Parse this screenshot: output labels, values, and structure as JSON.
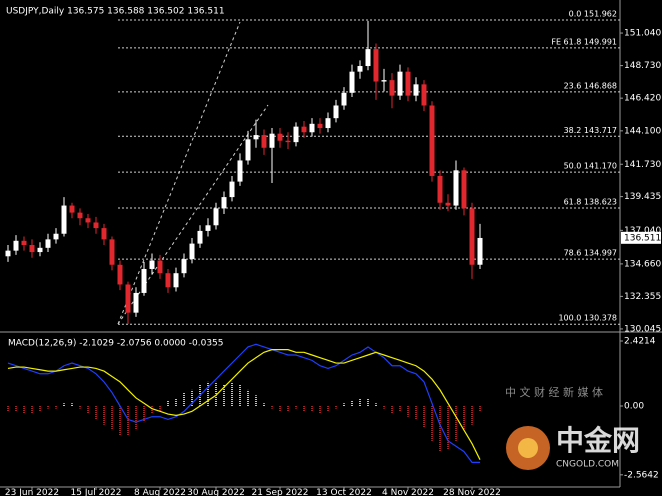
{
  "chart_data": [
    {
      "type": "candlestick",
      "title": "USDJPY,Daily  136.575 136.588 136.502 136.511",
      "categories": [
        null,
        null,
        null,
        "23 Jun 2022",
        null,
        null,
        null,
        null,
        null,
        null,
        null,
        "15 Jul 2022",
        null,
        null,
        null,
        null,
        null,
        null,
        null,
        "8 Aug 2022",
        null,
        null,
        null,
        null,
        null,
        null,
        "30 Aug 2022",
        null,
        null,
        null,
        null,
        null,
        null,
        null,
        "21 Sep 2022",
        null,
        null,
        null,
        null,
        null,
        null,
        null,
        "13 Oct 2022",
        null,
        null,
        null,
        null,
        null,
        null,
        null,
        "4 Nov 2022",
        null,
        null,
        null,
        null,
        null,
        null,
        null,
        "28 Nov 2022",
        null
      ],
      "open": [
        135.2,
        135.6,
        136.3,
        136.0,
        135.5,
        135.8,
        136.4,
        136.8,
        138.8,
        138.3,
        137.9,
        137.6,
        137.2,
        136.4,
        134.6,
        133.2,
        131.2,
        132.6,
        134.3,
        134.9,
        134.0,
        133.0,
        134.0,
        135.0,
        136.1,
        137.0,
        137.4,
        138.6,
        139.4,
        140.5,
        142.0,
        143.5,
        143.8,
        142.9,
        143.9,
        143.4,
        143.3,
        144.4,
        144.0,
        144.6,
        144.3,
        145.0,
        145.9,
        146.8,
        148.3,
        148.7,
        149.9,
        147.6,
        147.7,
        146.6,
        148.3,
        146.6,
        147.4,
        145.9,
        140.9,
        139.0,
        138.8,
        141.3,
        138.6,
        134.6
      ],
      "high": [
        136.0,
        136.7,
        136.6,
        136.4,
        136.2,
        136.8,
        137.2,
        139.4,
        139.0,
        138.6,
        138.2,
        138.0,
        137.5,
        136.6,
        134.9,
        133.4,
        133.0,
        134.8,
        135.4,
        135.3,
        134.3,
        134.4,
        135.4,
        136.5,
        137.4,
        137.9,
        139.0,
        139.8,
        140.9,
        142.5,
        144.1,
        144.9,
        144.2,
        144.3,
        144.3,
        144.0,
        144.7,
        144.8,
        145.0,
        145.0,
        145.4,
        146.3,
        147.2,
        148.8,
        149.1,
        151.9,
        150.3,
        148.5,
        148.2,
        148.8,
        148.6,
        147.9,
        147.7,
        146.2,
        141.3,
        139.6,
        142.0,
        141.5,
        139.0,
        137.5
      ],
      "low": [
        134.8,
        135.3,
        135.6,
        135.1,
        135.2,
        135.5,
        136.1,
        136.6,
        137.9,
        137.4,
        137.2,
        136.8,
        136.0,
        134.2,
        132.8,
        130.4,
        130.9,
        132.4,
        133.9,
        133.6,
        132.6,
        132.7,
        133.7,
        134.7,
        135.8,
        136.6,
        137.1,
        138.2,
        139.1,
        140.2,
        141.7,
        142.9,
        142.4,
        140.4,
        142.9,
        142.8,
        143.0,
        143.6,
        143.7,
        143.9,
        144.0,
        144.7,
        145.6,
        146.5,
        147.8,
        148.4,
        146.3,
        146.9,
        145.7,
        146.3,
        146.2,
        146.2,
        145.5,
        140.5,
        138.5,
        138.4,
        138.5,
        138.1,
        133.6,
        134.3
      ],
      "close": [
        135.6,
        136.3,
        136.0,
        135.5,
        135.8,
        136.4,
        136.8,
        138.8,
        138.3,
        137.9,
        137.6,
        137.2,
        136.4,
        134.6,
        133.2,
        131.2,
        132.6,
        134.3,
        134.9,
        134.0,
        133.0,
        134.0,
        135.0,
        136.1,
        137.0,
        137.4,
        138.6,
        139.4,
        140.5,
        142.0,
        143.5,
        143.8,
        142.9,
        143.9,
        143.4,
        143.3,
        144.4,
        144.0,
        144.6,
        144.3,
        145.0,
        145.9,
        146.8,
        148.3,
        148.7,
        149.9,
        147.6,
        147.7,
        146.6,
        148.3,
        146.6,
        147.4,
        145.9,
        140.9,
        139.0,
        138.8,
        141.3,
        138.6,
        134.6,
        136.5
      ],
      "up_color": "#ffffff",
      "down_color": "#e0282e",
      "ylim": [
        129.97,
        153.03
      ],
      "yticks": [
        {
          "value": 151.04,
          "label": "151.040"
        },
        {
          "value": 148.73,
          "label": "148.730"
        },
        {
          "value": 146.42,
          "label": "146.420"
        },
        {
          "value": 144.1,
          "label": "144.100"
        },
        {
          "value": 141.73,
          "label": "141.730"
        },
        139.435,
        {
          "value": 137.04,
          "label": "137.040"
        },
        {
          "value": 134.66,
          "label": "134.660"
        },
        132.355,
        130.045
      ],
      "last_price": 136.511,
      "fib_levels": [
        {
          "value": 151.962,
          "label": "0.0  151.962"
        },
        {
          "value": 149.991,
          "label": "FE 61.8  149.991"
        },
        {
          "value": 146.868,
          "label": "23.6  146.868"
        },
        {
          "value": 143.717,
          "label": "38.2  143.717"
        },
        {
          "value": 141.17,
          "label": "50.0  141.170"
        },
        {
          "value": 138.623,
          "label": "61.8  138.623"
        },
        {
          "value": 134.997,
          "label": "78.6  134.997"
        },
        {
          "value": 130.378,
          "label": "100.0  130.378"
        }
      ]
    },
    {
      "type": "macd",
      "title": "MACD(12,26,9) -2.1029 -2.0756 0.0000 -0.0355",
      "histogram": [
        -0.2,
        -0.2,
        -0.3,
        -0.3,
        -0.2,
        -0.1,
        -0.1,
        0.1,
        0.1,
        -0.1,
        -0.3,
        -0.5,
        -0.7,
        -0.9,
        -1.1,
        -1.1,
        -0.9,
        -0.6,
        -0.3,
        -0.2,
        0.2,
        0.3,
        0.5,
        0.6,
        0.8,
        0.9,
        0.9,
        0.8,
        0.9,
        0.8,
        0.6,
        0.4,
        0.1,
        -0.1,
        -0.2,
        -0.2,
        -0.1,
        -0.2,
        -0.2,
        -0.3,
        -0.2,
        -0.1,
        0.1,
        0.2,
        0.3,
        0.3,
        0.1,
        -0.1,
        -0.3,
        -0.2,
        -0.4,
        -0.5,
        -0.8,
        -1.3,
        -1.7,
        -1.6,
        -1.3,
        -0.9,
        -0.7,
        -0.2
      ],
      "up_color": "#ffffff",
      "down_color": "#e0282e",
      "series": [
        {
          "color": "#1f3fff",
          "values": [
            1.6,
            1.5,
            1.4,
            1.3,
            1.2,
            1.2,
            1.3,
            1.5,
            1.6,
            1.5,
            1.4,
            1.2,
            0.9,
            0.5,
            0.0,
            -0.5,
            -0.6,
            -0.5,
            -0.4,
            -0.4,
            -0.5,
            -0.4,
            -0.2,
            0.1,
            0.4,
            0.7,
            1.0,
            1.3,
            1.6,
            1.9,
            2.2,
            2.3,
            2.2,
            2.1,
            2.0,
            1.9,
            1.9,
            1.8,
            1.7,
            1.5,
            1.4,
            1.5,
            1.7,
            1.9,
            2.0,
            2.2,
            2.0,
            1.8,
            1.5,
            1.5,
            1.3,
            1.2,
            0.9,
            0.1,
            -0.7,
            -1.3,
            -1.5,
            -1.7,
            -2.1,
            -2.1
          ]
        },
        {
          "color": "#f0f000",
          "values": [
            1.4,
            1.45,
            1.45,
            1.4,
            1.35,
            1.3,
            1.3,
            1.35,
            1.4,
            1.45,
            1.45,
            1.4,
            1.3,
            1.1,
            0.9,
            0.6,
            0.3,
            0.1,
            -0.1,
            -0.2,
            -0.3,
            -0.35,
            -0.3,
            -0.2,
            0.0,
            0.2,
            0.4,
            0.7,
            1.0,
            1.3,
            1.6,
            1.8,
            2.0,
            2.1,
            2.1,
            2.1,
            2.0,
            2.0,
            1.9,
            1.8,
            1.7,
            1.6,
            1.6,
            1.7,
            1.8,
            1.9,
            2.0,
            1.9,
            1.8,
            1.7,
            1.6,
            1.5,
            1.3,
            1.0,
            0.6,
            0.1,
            -0.4,
            -0.9,
            -1.4,
            -2.0
          ]
        }
      ],
      "ylim": [
        -3.018,
        2.645
      ],
      "yticks": [
        2.4214,
        {
          "value": 0,
          "label": "0.00"
        },
        -2.5642
      ]
    }
  ],
  "watermark": {
    "brand": "中金网",
    "site": "CNGOLD.COM",
    "slogan": "中 文 财 经 新 媒 体"
  }
}
